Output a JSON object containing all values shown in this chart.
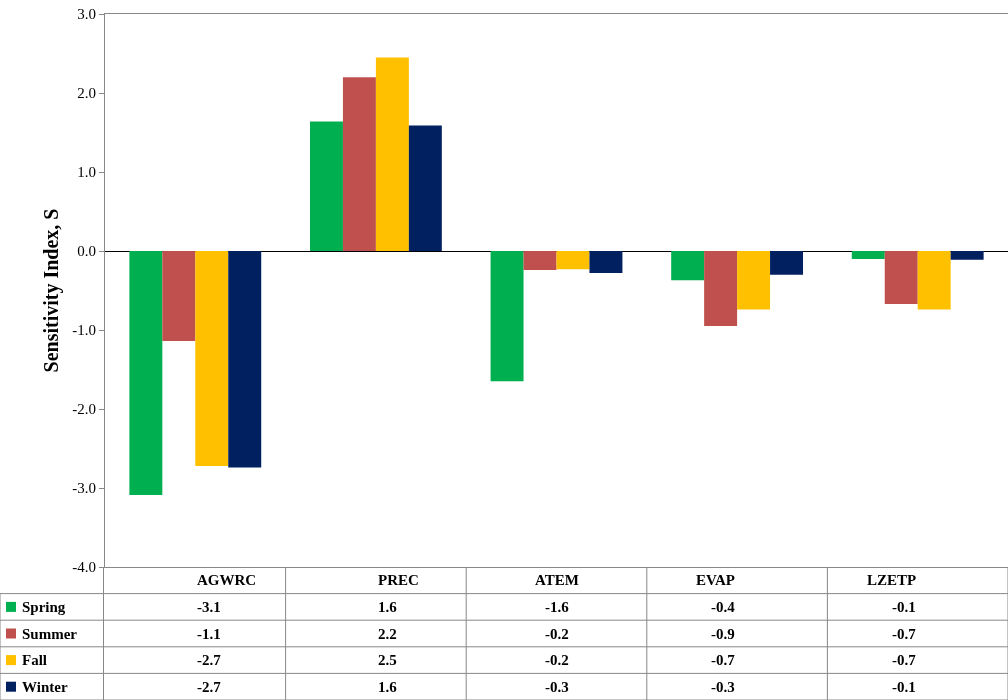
{
  "chart_data": {
    "type": "bar",
    "ylabel": "Sensitivity Index, S",
    "categories": [
      "AGWRC",
      "PREC",
      "ATEM",
      "EVAP",
      "LZETP"
    ],
    "series": [
      {
        "name": "Spring",
        "color": "#00b050",
        "values": [
          -3.09,
          1.64,
          -1.65,
          -0.37,
          -0.1
        ],
        "value_labels": [
          "-3.1",
          "1.6",
          "-1.6",
          "-0.4",
          "-0.1"
        ]
      },
      {
        "name": "Summer",
        "color": "#c0504d",
        "values": [
          -1.14,
          2.2,
          -0.24,
          -0.95,
          -0.67
        ],
        "value_labels": [
          "-1.1",
          "2.2",
          "-0.2",
          "-0.9",
          "-0.7"
        ]
      },
      {
        "name": "Fall",
        "color": "#ffc000",
        "values": [
          -2.72,
          2.45,
          -0.23,
          -0.74,
          -0.74
        ],
        "value_labels": [
          "-2.7",
          "2.5",
          "-0.2",
          "-0.7",
          "-0.7"
        ]
      },
      {
        "name": "Winter",
        "color": "#002060",
        "values": [
          -2.74,
          1.59,
          -0.28,
          -0.3,
          -0.11
        ],
        "value_labels": [
          "-2.7",
          "1.6",
          "-0.3",
          "-0.3",
          "-0.1"
        ]
      }
    ],
    "ylim": [
      -4,
      3
    ],
    "yticks": [
      {
        "value": 3,
        "label": "3.0"
      },
      {
        "value": 2,
        "label": "2.0"
      },
      {
        "value": 1,
        "label": "1.0"
      },
      {
        "value": 0,
        "label": "0.0"
      },
      {
        "value": -1,
        "label": "-1.0"
      },
      {
        "value": -2,
        "label": "-2.0"
      },
      {
        "value": -3,
        "label": "-3.0"
      },
      {
        "value": -4,
        "label": "-4.0"
      }
    ],
    "legend": "bottom left"
  }
}
